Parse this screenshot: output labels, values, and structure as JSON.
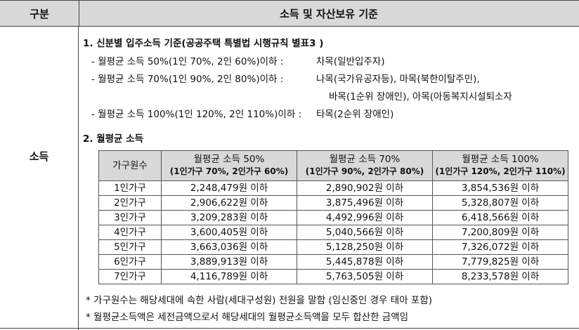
{
  "header": {
    "left": "구분",
    "right": "소득 및 자산보유 기준"
  },
  "category": "소득",
  "section1": {
    "title": "1. 신분별 입주소득 기준(공공주택 특별법 시행규칙 별표3 )",
    "items": [
      {
        "label": "- 월평균 소득 50%(1인 70%, 2인 60%)이하 :",
        "value": "차목(일반입주자)"
      },
      {
        "label": "- 월평균 소득 70%(1인 90%, 2인 80%)이하 :",
        "value": "나목(국가유공자등), 마목(북한이탈주민),",
        "value2": "바목(1순위 장애인), 아목(아동복지시설퇴소자"
      },
      {
        "label": "- 월평균 소득 100%(1인 120%, 2인 110%)이하 :",
        "value": "타목(2순위 장애인)"
      }
    ]
  },
  "section2": {
    "title": "2. 월평균 소득",
    "headers": [
      {
        "main": "가구원수",
        "sub": ""
      },
      {
        "main": "월평균 소득 50%",
        "sub": "(1인가구 70%, 2인가구 60%)"
      },
      {
        "main": "월평균 소득 70%",
        "sub": "(1인가구 90%, 2인가구 80%)"
      },
      {
        "main": "월평균 소득 100%",
        "sub": "(1인가구 120%, 2인가구 110%)"
      }
    ],
    "rows": [
      [
        "1인가구",
        "2,248,479원 이하",
        "2,890,902원 이하",
        "3,854,536원 이하"
      ],
      [
        "2인가구",
        "2,906,622원 이하",
        "3,875,496원 이하",
        "5,328,807원 이하"
      ],
      [
        "3인가구",
        "3,209,283원 이하",
        "4,492,996원 이하",
        "6,418,566원 이하"
      ],
      [
        "4인가구",
        "3,600,405원 이하",
        "5,040,566원 이하",
        "7,200,809원 이하"
      ],
      [
        "5인가구",
        "3,663,036원 이하",
        "5,128,250원 이하",
        "7,326,072원 이하"
      ],
      [
        "6인가구",
        "3,889,913원 이하",
        "5,445,878원 이하",
        "7,779,825원 이하"
      ],
      [
        "7인가구",
        "4,116,789원 이하",
        "5,763,505원 이하",
        "8,233,578원 이하"
      ]
    ]
  },
  "notes": [
    "* 가구원수는 해당세대에 속한 사람(세대구성원) 전원을 말함 (임신중인 경우 태아 포함)",
    "* 월평균소득액은 세전금액으로서 해당세대의 월평균소득액을 모두 합산한 금액임"
  ]
}
